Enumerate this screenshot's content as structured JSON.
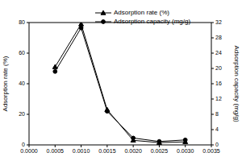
{
  "chart_data": {
    "type": "line",
    "x": [
      0.0005,
      0.001,
      0.0015,
      0.002,
      0.0025,
      0.003
    ],
    "xlim": [
      0,
      0.0035
    ],
    "xticks": [
      {
        "value": 0,
        "label": "0.0000"
      },
      {
        "value": 0.0005,
        "label": "0.0005"
      },
      {
        "value": 0.001,
        "label": "0.0010"
      },
      {
        "value": 0.0015,
        "label": "0.0015"
      },
      {
        "value": 0.002,
        "label": "0.0020"
      },
      {
        "value": 0.0025,
        "label": "0.0025"
      },
      {
        "value": 0.003,
        "label": "0.0030"
      },
      {
        "value": 0.0035,
        "label": "0.0035"
      }
    ],
    "ylabel": "Adsorption rate (%)",
    "ylim": [
      0,
      80
    ],
    "yticks": [
      0,
      20,
      40,
      60,
      80
    ],
    "y2label": "Adsorption capacity (mg/g)",
    "y2lim": [
      0,
      32
    ],
    "y2ticks": [
      0,
      4,
      8,
      12,
      16,
      20,
      24,
      28,
      32
    ],
    "legend": "top",
    "series": [
      {
        "name": "Adsorption rate (%)",
        "color": "#000000",
        "marker": "triangle",
        "values": [
          51,
          79,
          23,
          3,
          1.5,
          2
        ]
      },
      {
        "name": "Adsorption capacity (mg/g)",
        "color": "#000000",
        "marker": "circle",
        "axis": "y2",
        "values": [
          19.2,
          30.6,
          8.8,
          1.8,
          0.9,
          1.3
        ]
      }
    ]
  }
}
